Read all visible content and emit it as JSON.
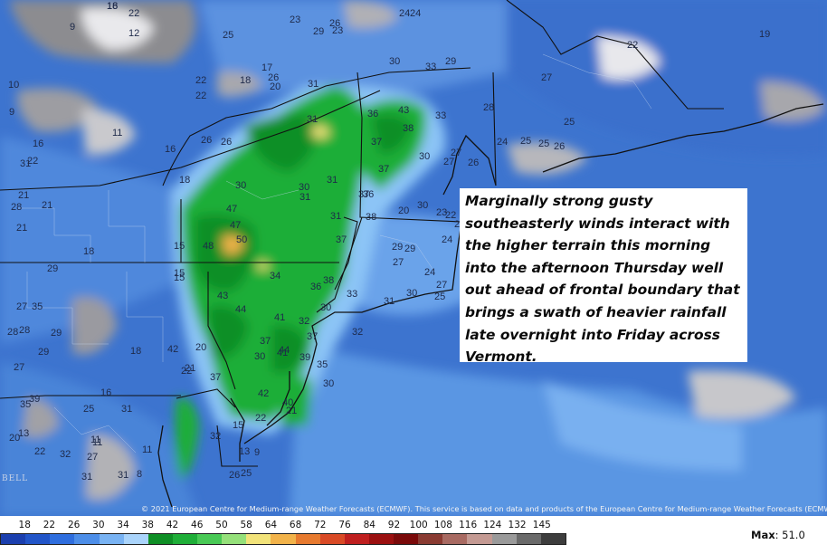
{
  "map": {
    "annotation": "Marginally strong gusty southeasterly winds interact with the higher terrain this morning into the afternoon Thursday well out ahead of frontal boundary that brings a swath of heavier rainfall late overnight into Friday across Vermont.",
    "credit": "© 2021 European Centre for Medium-range Weather Forecasts (ECMWF). This service is based on data and products of the European Centre for Medium-range Weather Forecasts (ECMWF).",
    "logo_text": "BELL",
    "gust_labels": [
      "18",
      "12",
      "22",
      "9",
      "25",
      "23",
      "26",
      "24",
      "24",
      "23",
      "29",
      "10",
      "18",
      "17",
      "20",
      "22",
      "30",
      "33",
      "29",
      "27",
      "19",
      "21",
      "22",
      "18",
      "30",
      "31",
      "43",
      "33",
      "28",
      "9",
      "26",
      "31",
      "36",
      "38",
      "22",
      "16",
      "26",
      "37",
      "24",
      "22",
      "25",
      "21",
      "11",
      "27",
      "16",
      "25",
      "25",
      "26",
      "15",
      "26",
      "31",
      "37",
      "27",
      "15",
      "28",
      "30",
      "36",
      "30",
      "30",
      "23",
      "22",
      "21",
      "47",
      "31",
      "38",
      "24",
      "23",
      "31",
      "47",
      "37",
      "26",
      "29",
      "20",
      "48",
      "50",
      "18",
      "37",
      "29",
      "29",
      "27",
      "31",
      "34",
      "24",
      "29",
      "15",
      "35",
      "27",
      "43",
      "36",
      "33",
      "31",
      "30",
      "25",
      "27",
      "44",
      "37",
      "38",
      "41",
      "32",
      "30",
      "28",
      "32",
      "37",
      "42",
      "18",
      "20",
      "35",
      "22",
      "37",
      "21",
      "29",
      "28",
      "30",
      "41",
      "39",
      "16",
      "42",
      "44",
      "27",
      "30",
      "22",
      "35",
      "40",
      "39",
      "21",
      "25",
      "13",
      "31",
      "32",
      "15",
      "11",
      "20",
      "9",
      "13",
      "27",
      "31",
      "32",
      "31",
      "25",
      "26",
      "22",
      "8",
      "11",
      "11",
      "16"
    ],
    "colorbar_values": [
      "18",
      "22",
      "26",
      "30",
      "34",
      "38",
      "42",
      "46",
      "50",
      "58",
      "64",
      "68",
      "72",
      "76",
      "84",
      "92",
      "100",
      "108",
      "116",
      "124",
      "132",
      "145"
    ],
    "colorbar_colors": [
      "#1b3fae",
      "#2255c8",
      "#2f6ede",
      "#4d8ee8",
      "#79b3f3",
      "#aad4fb",
      "#0f8f26",
      "#1fae38",
      "#49c955",
      "#95e07a",
      "#f2e37a",
      "#f2b34a",
      "#e77a2f",
      "#d94a26",
      "#bf1f1f",
      "#9b1010",
      "#7a0a0a",
      "#8a3b32",
      "#a86a62",
      "#c49a93",
      "#9a9a9a",
      "#6a6a6a",
      "#3d3d3d"
    ],
    "max_label": "Max",
    "max_value": "51.0"
  }
}
